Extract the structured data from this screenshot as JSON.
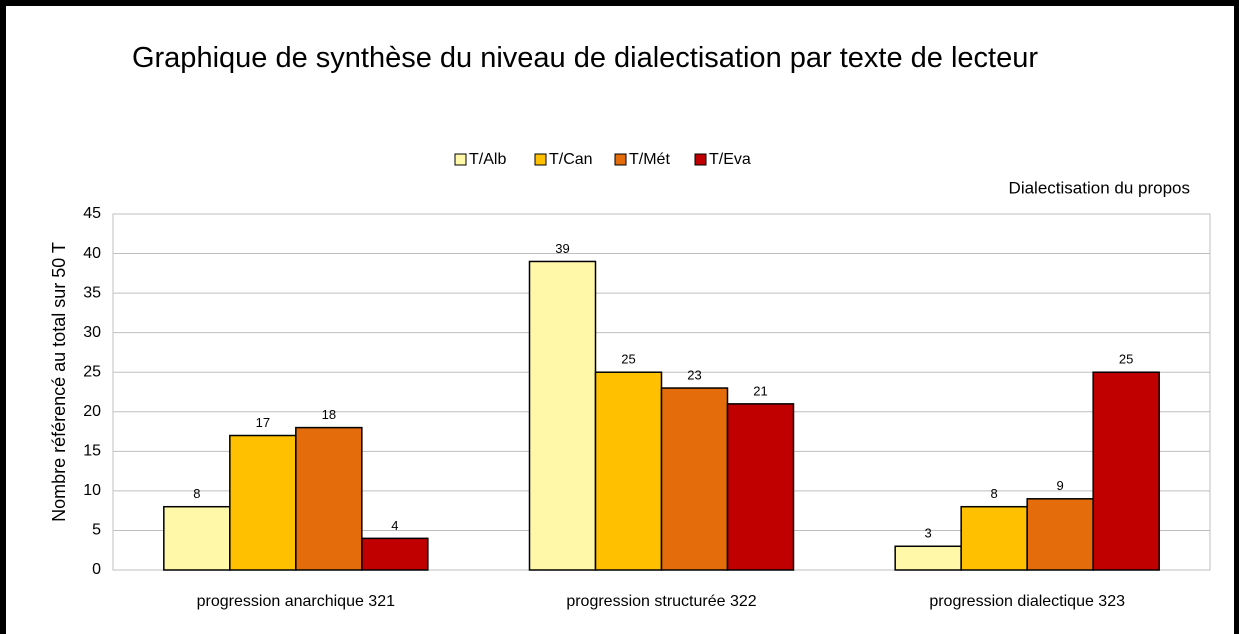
{
  "chart_data": {
    "type": "bar",
    "title": "Graphique de synthèse du niveau de dialectisation par texte de lecteur",
    "annotation": "Dialectisation du propos",
    "y_label": "Nombre référencé au total sur 50 T",
    "categories": [
      "progression anarchique 321",
      "progression structurée 322",
      "progression dialectique 323"
    ],
    "series": [
      {
        "name": "T/Alb",
        "color": "#fff8a8",
        "values": [
          8,
          39,
          3
        ]
      },
      {
        "name": "T/Can",
        "color": "#ffc000",
        "values": [
          17,
          25,
          8
        ]
      },
      {
        "name": "T/Mét",
        "color": "#e46c0a",
        "values": [
          18,
          23,
          9
        ]
      },
      {
        "name": "T/Eva",
        "color": "#c00000",
        "values": [
          4,
          21,
          25
        ]
      }
    ],
    "ylim": [
      0,
      45
    ],
    "yticks": [
      0,
      5,
      10,
      15,
      20,
      25,
      30,
      35,
      40,
      45
    ],
    "grid": true,
    "legend": "top"
  }
}
